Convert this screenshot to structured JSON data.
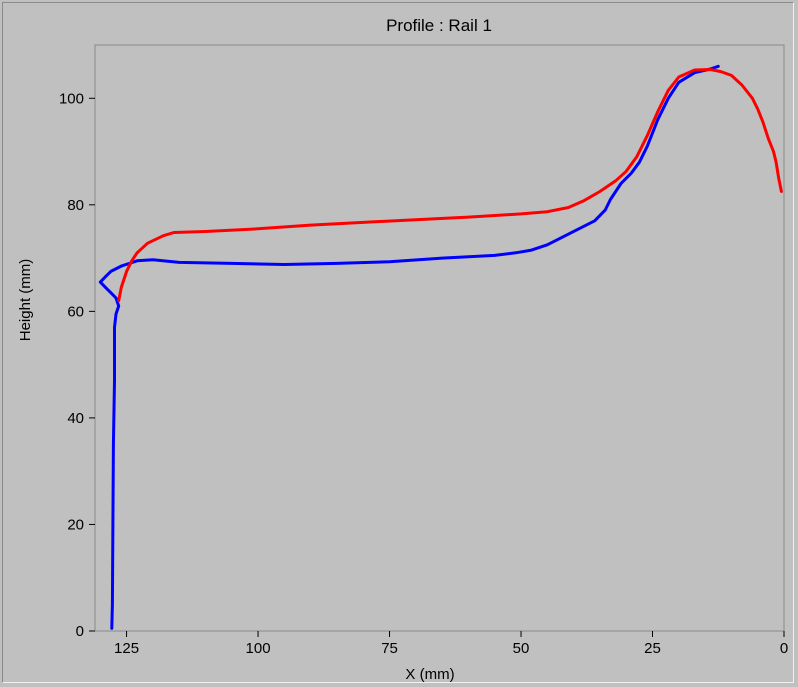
{
  "chart_data": {
    "type": "line",
    "title": "Profile : Rail 1",
    "xlabel": "X (mm)",
    "ylabel": "Height (mm)",
    "xlim": [
      131,
      0
    ],
    "ylim": [
      0,
      110
    ],
    "x_reversed": true,
    "grid": false,
    "x_ticks": [
      125,
      100,
      75,
      50,
      25,
      0
    ],
    "y_ticks": [
      0,
      20,
      40,
      60,
      80,
      100
    ],
    "colors": {
      "plot_background": "#c0c0c0",
      "frame_background": "#c0c0c0"
    },
    "series": [
      {
        "color": "#0000ff",
        "points": [
          [
            12.5,
            106
          ],
          [
            14,
            105.5
          ],
          [
            17,
            104.8
          ],
          [
            20,
            103
          ],
          [
            22,
            100
          ],
          [
            24,
            96
          ],
          [
            26,
            91
          ],
          [
            27.5,
            88
          ],
          [
            29,
            86
          ],
          [
            31,
            84
          ],
          [
            33,
            81
          ],
          [
            34,
            79
          ],
          [
            36,
            77
          ],
          [
            39,
            75.5
          ],
          [
            42,
            74
          ],
          [
            45,
            72.5
          ],
          [
            48,
            71.5
          ],
          [
            51,
            71
          ],
          [
            55,
            70.5
          ],
          [
            65,
            70
          ],
          [
            75,
            69.3
          ],
          [
            85,
            69
          ],
          [
            95,
            68.8
          ],
          [
            105,
            69
          ],
          [
            115,
            69.2
          ],
          [
            120,
            69.7
          ],
          [
            123,
            69.5
          ],
          [
            126,
            68.5
          ],
          [
            128,
            67.5
          ],
          [
            129,
            66.5
          ],
          [
            130,
            65.5
          ],
          [
            129,
            64.5
          ],
          [
            128,
            63.5
          ],
          [
            127,
            62.5
          ],
          [
            126.5,
            61
          ],
          [
            127,
            59.5
          ],
          [
            127.3,
            57
          ],
          [
            127.3,
            47
          ],
          [
            127.5,
            35
          ],
          [
            127.6,
            20
          ],
          [
            127.7,
            5
          ],
          [
            127.8,
            0.5
          ]
        ]
      },
      {
        "color": "#ff0000",
        "points": [
          [
            0.5,
            82.5
          ],
          [
            1,
            85
          ],
          [
            1.5,
            88
          ],
          [
            2,
            90
          ],
          [
            3,
            92.5
          ],
          [
            4,
            95.5
          ],
          [
            5,
            98
          ],
          [
            6,
            100
          ],
          [
            8,
            102.5
          ],
          [
            10,
            104.3
          ],
          [
            12,
            105
          ],
          [
            14,
            105.4
          ],
          [
            17,
            105.3
          ],
          [
            20,
            104
          ],
          [
            22,
            101.5
          ],
          [
            24,
            97.5
          ],
          [
            26,
            93
          ],
          [
            28,
            89
          ],
          [
            30,
            86.3
          ],
          [
            32,
            84.5
          ],
          [
            35,
            82.5
          ],
          [
            38,
            80.8
          ],
          [
            41,
            79.5
          ],
          [
            45,
            78.7
          ],
          [
            50,
            78.3
          ],
          [
            60,
            77.7
          ],
          [
            70,
            77.2
          ],
          [
            80,
            76.7
          ],
          [
            90,
            76.2
          ],
          [
            100,
            75.5
          ],
          [
            110,
            75
          ],
          [
            116,
            74.8
          ],
          [
            118,
            74.2
          ],
          [
            121,
            72.8
          ],
          [
            123,
            71
          ],
          [
            124,
            69.5
          ],
          [
            125,
            67.5
          ],
          [
            126,
            64.5
          ],
          [
            126.5,
            62
          ]
        ]
      }
    ]
  }
}
